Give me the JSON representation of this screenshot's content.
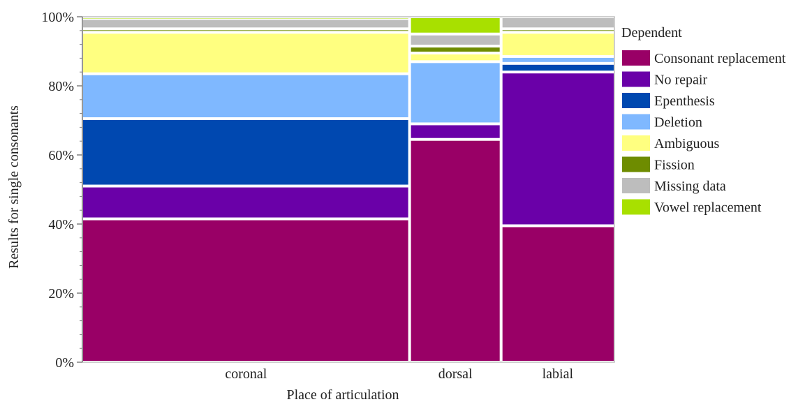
{
  "chart_data": {
    "type": "mosaic",
    "xlabel": "Place of articulation",
    "ylabel": "Results for single consonants",
    "ylim": [
      0,
      100
    ],
    "y_ticks": [
      "0%",
      "20%",
      "40%",
      "60%",
      "80%",
      "100%"
    ],
    "grid": false,
    "legend": {
      "title": "Dependent",
      "position": "right",
      "entries": [
        {
          "name": "Consonant replacement",
          "color": "#990066"
        },
        {
          "name": "No repair",
          "color": "#6a00a8"
        },
        {
          "name": "Epenthesis",
          "color": "#0048b0"
        },
        {
          "name": "Deletion",
          "color": "#7fb8ff"
        },
        {
          "name": "Ambiguous",
          "color": "#ffff80"
        },
        {
          "name": "Fission",
          "color": "#6e8c00"
        },
        {
          "name": "Missing data",
          "color": "#bdbdbd"
        },
        {
          "name": "Vowel replacement",
          "color": "#a8e000"
        }
      ]
    },
    "categories": [
      {
        "name": "coronal",
        "width_share": 0.615,
        "values": {
          "Consonant replacement": 41.5,
          "No repair": 9.5,
          "Epenthesis": 19.5,
          "Deletion": 13.0,
          "Ambiguous": 12.0,
          "Fission": 1.0,
          "Missing data": 3.0,
          "Vowel replacement": 0.5
        }
      },
      {
        "name": "dorsal",
        "width_share": 0.172,
        "values": {
          "Consonant replacement": 64.5,
          "No repair": 4.5,
          "Epenthesis": 0.0,
          "Deletion": 18.0,
          "Ambiguous": 2.5,
          "Fission": 2.0,
          "Missing data": 3.5,
          "Vowel replacement": 5.0
        }
      },
      {
        "name": "labial",
        "width_share": 0.213,
        "values": {
          "Consonant replacement": 39.5,
          "No repair": 44.5,
          "Epenthesis": 2.5,
          "Deletion": 2.0,
          "Ambiguous": 7.0,
          "Fission": 1.0,
          "Missing data": 3.5,
          "Vowel replacement": 0.0
        }
      }
    ]
  }
}
